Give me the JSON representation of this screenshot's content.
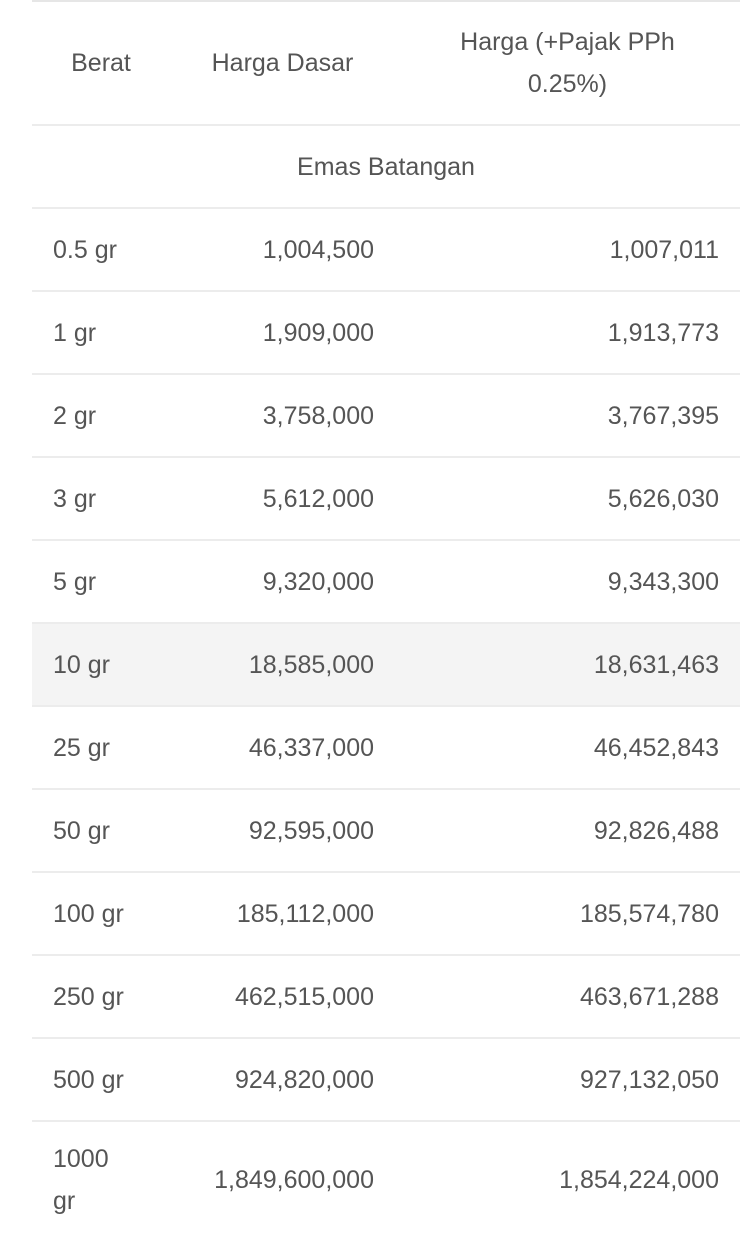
{
  "table": {
    "header": [
      "Berat",
      "Harga Dasar",
      "Harga (+Pajak PPh 0.25%)"
    ],
    "section": "Emas Batangan",
    "rows": [
      [
        "0.5 gr",
        "1,004,500",
        "1,007,011"
      ],
      [
        "1 gr",
        "1,909,000",
        "1,913,773"
      ],
      [
        "2 gr",
        "3,758,000",
        "3,767,395"
      ],
      [
        "3 gr",
        "5,612,000",
        "5,626,030"
      ],
      [
        "5 gr",
        "9,320,000",
        "9,343,300"
      ],
      [
        "10 gr",
        "18,585,000",
        "18,631,463"
      ],
      [
        "25 gr",
        "46,337,000",
        "46,452,843"
      ],
      [
        "50 gr",
        "92,595,000",
        "92,826,488"
      ],
      [
        "100 gr",
        "185,112,000",
        "185,574,780"
      ],
      [
        "250 gr",
        "462,515,000",
        "463,671,288"
      ],
      [
        "500 gr",
        "924,820,000",
        "927,132,050"
      ],
      [
        "1000 gr",
        "1,849,600,000",
        "1,854,224,000"
      ]
    ]
  }
}
